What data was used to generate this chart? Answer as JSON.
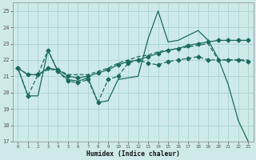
{
  "xlabel": "Humidex (Indice chaleur)",
  "xlim": [
    -0.5,
    23.5
  ],
  "ylim": [
    17,
    25.5
  ],
  "yticks": [
    17,
    18,
    19,
    20,
    21,
    22,
    23,
    24,
    25
  ],
  "xticks": [
    0,
    1,
    2,
    3,
    4,
    5,
    6,
    7,
    8,
    9,
    10,
    11,
    12,
    13,
    14,
    15,
    16,
    17,
    18,
    19,
    20,
    21,
    22,
    23
  ],
  "background_color": "#ceeae8",
  "grid_color": "#aad4d0",
  "line_color": "#1a6b5a",
  "lines": [
    [
      21.5,
      19.8,
      19.8,
      22.6,
      21.3,
      20.8,
      20.7,
      20.9,
      19.4,
      19.5,
      20.8,
      20.9,
      21.0,
      23.3,
      25.0,
      23.1,
      23.2,
      23.5,
      23.8,
      23.2,
      22.1,
      20.5,
      18.3,
      17.0
    ],
    [
      21.5,
      21.1,
      21.1,
      21.5,
      21.4,
      21.0,
      20.9,
      21.0,
      21.2,
      21.4,
      21.7,
      21.9,
      22.0,
      22.2,
      22.4,
      22.6,
      22.7,
      22.9,
      23.0,
      23.1,
      23.2,
      23.2,
      23.2,
      23.2
    ],
    [
      21.5,
      21.1,
      21.1,
      21.4,
      21.4,
      21.1,
      21.1,
      21.1,
      21.3,
      21.5,
      21.8,
      22.0,
      22.2,
      22.3,
      22.5,
      22.6,
      22.7,
      22.8,
      22.9,
      23.0,
      22.0,
      22.0,
      22.0,
      22.0
    ],
    [
      21.5,
      19.8,
      21.1,
      22.6,
      21.3,
      20.7,
      20.6,
      20.8,
      19.4,
      20.8,
      21.0,
      21.8,
      22.0,
      21.8,
      21.7,
      21.9,
      22.0,
      22.1,
      22.2,
      22.0,
      22.0,
      22.0,
      22.0,
      21.9
    ]
  ],
  "dashes": [
    null,
    null,
    [
      4,
      2
    ],
    [
      4,
      2
    ]
  ],
  "markers": [
    null,
    "D",
    null,
    "D"
  ],
  "marker_size": 2.5,
  "linewidths": [
    0.9,
    0.9,
    0.9,
    0.9
  ]
}
